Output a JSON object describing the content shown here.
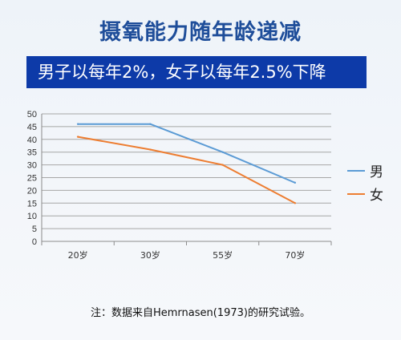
{
  "title": "摄氧能力随年龄递减",
  "banner": "男子以每年2%，女子以每年2.5%下降",
  "note": "注：数据来自Hemrnasen(1973)的研究试验。",
  "chart_data": {
    "type": "line",
    "categories": [
      "20岁",
      "30岁",
      "55岁",
      "70岁"
    ],
    "series": [
      {
        "name": "男",
        "values": [
          46,
          46,
          35,
          23
        ],
        "color": "#5b9bd5"
      },
      {
        "name": "女",
        "values": [
          41,
          36,
          30,
          15
        ],
        "color": "#ed7d31"
      }
    ],
    "ylim": [
      0,
      50
    ],
    "yticks": [
      0,
      5,
      10,
      15,
      20,
      25,
      30,
      35,
      40,
      45,
      50
    ],
    "grid": true,
    "legend": "right"
  }
}
